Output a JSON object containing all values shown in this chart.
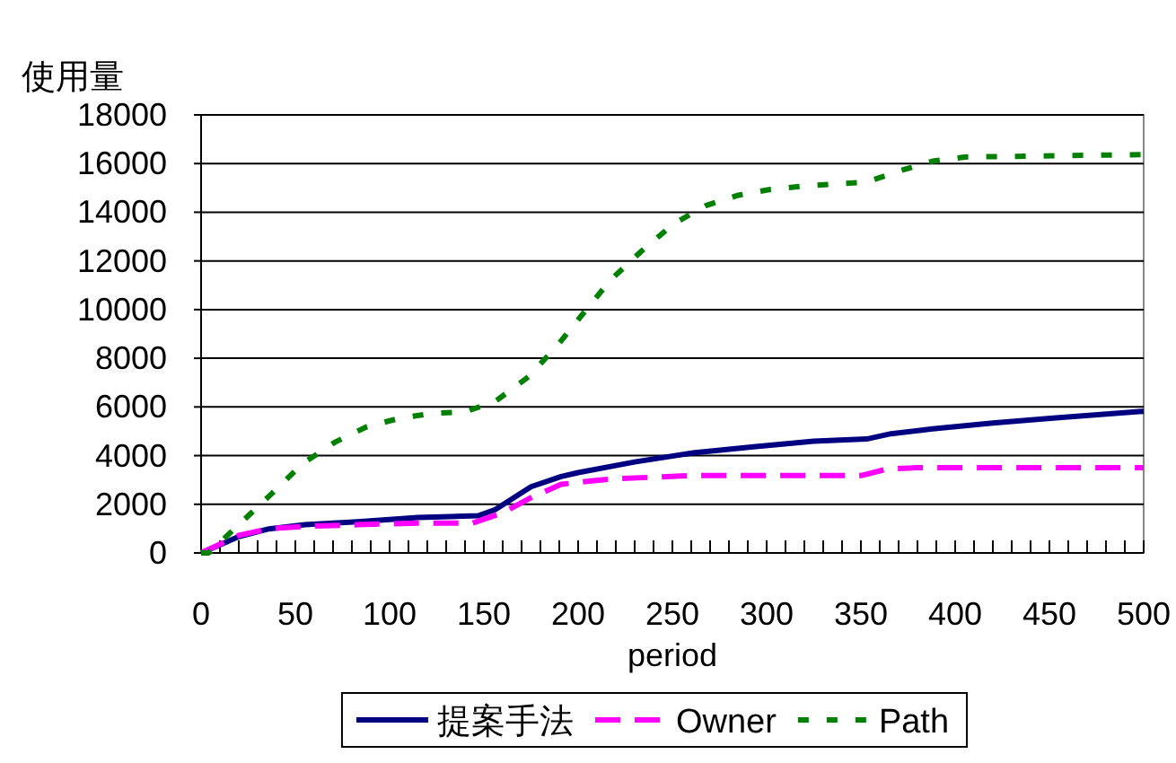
{
  "chart_data": {
    "type": "line",
    "ylabel": "使用量",
    "xlabel": "period",
    "xlim": [
      0,
      500
    ],
    "ylim": [
      0,
      18000
    ],
    "xticks": [
      0,
      {
        "value": 10,
        "label": null
      },
      {
        "value": 20,
        "label": null
      },
      {
        "value": 30,
        "label": null
      },
      {
        "value": 40,
        "label": null
      },
      50,
      {
        "value": 60,
        "label": null
      },
      {
        "value": 70,
        "label": null
      },
      {
        "value": 80,
        "label": null
      },
      {
        "value": 90,
        "label": null
      },
      100,
      {
        "value": 110,
        "label": null
      },
      {
        "value": 120,
        "label": null
      },
      {
        "value": 130,
        "label": null
      },
      {
        "value": 140,
        "label": null
      },
      150,
      {
        "value": 160,
        "label": null
      },
      {
        "value": 170,
        "label": null
      },
      {
        "value": 180,
        "label": null
      },
      {
        "value": 190,
        "label": null
      },
      200,
      {
        "value": 210,
        "label": null
      },
      {
        "value": 220,
        "label": null
      },
      {
        "value": 230,
        "label": null
      },
      {
        "value": 240,
        "label": null
      },
      250,
      {
        "value": 260,
        "label": null
      },
      {
        "value": 270,
        "label": null
      },
      {
        "value": 280,
        "label": null
      },
      {
        "value": 290,
        "label": null
      },
      300,
      {
        "value": 310,
        "label": null
      },
      {
        "value": 320,
        "label": null
      },
      {
        "value": 330,
        "label": null
      },
      {
        "value": 340,
        "label": null
      },
      350,
      {
        "value": 360,
        "label": null
      },
      {
        "value": 370,
        "label": null
      },
      {
        "value": 380,
        "label": null
      },
      {
        "value": 390,
        "label": null
      },
      400,
      {
        "value": 410,
        "label": null
      },
      {
        "value": 420,
        "label": null
      },
      {
        "value": 430,
        "label": null
      },
      {
        "value": 440,
        "label": null
      },
      450,
      {
        "value": 460,
        "label": null
      },
      {
        "value": 470,
        "label": null
      },
      {
        "value": 480,
        "label": null
      },
      {
        "value": 490,
        "label": null
      },
      500
    ],
    "yticks": [
      0,
      2000,
      4000,
      6000,
      8000,
      10000,
      12000,
      14000,
      16000,
      18000
    ],
    "grid": "y",
    "legend": "bottom",
    "series": [
      {
        "name": "提案手法",
        "color": "#000080",
        "line_style": "solid",
        "x": [
          0,
          20,
          36,
          55,
          83,
          115,
          147,
          156,
          175,
          191,
          200,
          230,
          261,
          293,
          325,
          353,
          366,
          388,
          420,
          452,
          500
        ],
        "values": [
          0,
          670,
          990,
          1160,
          1280,
          1460,
          1530,
          1780,
          2720,
          3140,
          3300,
          3740,
          4110,
          4360,
          4590,
          4680,
          4900,
          5100,
          5340,
          5540,
          5820
        ]
      },
      {
        "name": "Owner",
        "color": "#ff00ff",
        "line_style": "dashed",
        "x": [
          0,
          20,
          36,
          55,
          83,
          115,
          144,
          160,
          175,
          191,
          207,
          220,
          261,
          350,
          364,
          379,
          500
        ],
        "values": [
          0,
          720,
          1000,
          1090,
          1160,
          1230,
          1230,
          1650,
          2270,
          2820,
          2960,
          3050,
          3180,
          3180,
          3450,
          3500,
          3500
        ]
      },
      {
        "name": "Path",
        "color": "#008000",
        "line_style": "dotted",
        "x": [
          0,
          4,
          20,
          37,
          54,
          71,
          88,
          105,
          122,
          140,
          156,
          174,
          190,
          203,
          217,
          234,
          251,
          268,
          285,
          302,
          319,
          336,
          353,
          371,
          388,
          405,
          500
        ],
        "values": [
          0,
          0,
          1160,
          2400,
          3680,
          4550,
          5190,
          5530,
          5730,
          5800,
          6220,
          7260,
          8620,
          9870,
          11200,
          12430,
          13540,
          14280,
          14700,
          14940,
          15070,
          15160,
          15240,
          15710,
          16100,
          16270,
          16370
        ]
      }
    ]
  }
}
